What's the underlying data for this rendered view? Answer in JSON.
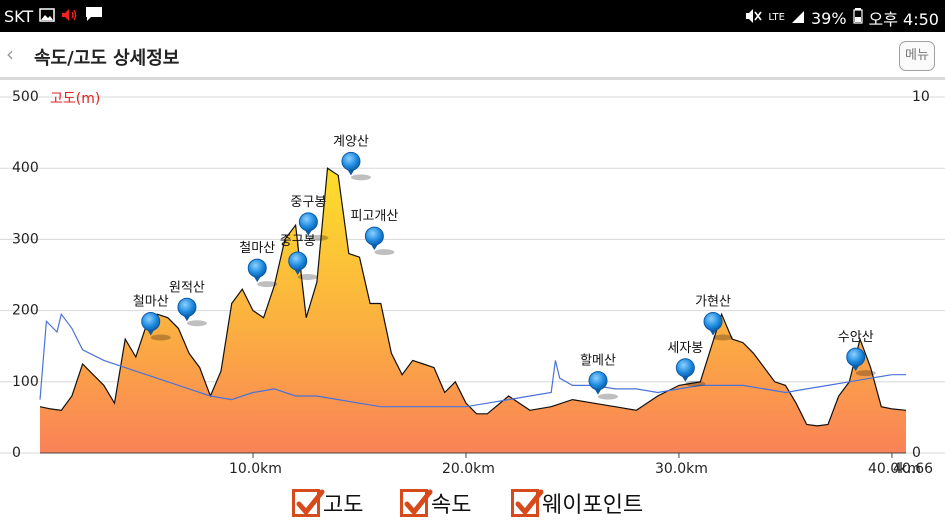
{
  "status_bar": {
    "carrier": "SKT",
    "network": "LTE",
    "battery": "39%",
    "time": "오후 4:50",
    "icons": [
      "image-icon",
      "speaker-icon",
      "message-icon",
      "mute-icon",
      "signal-icon",
      "battery-icon"
    ]
  },
  "header": {
    "back_icon": "‹",
    "title": "속도/고도 상세정보",
    "menu_label": "메뉴"
  },
  "colors": {
    "altitude_fill_top": "#fcd52a",
    "altitude_fill_bottom": "#fa8a5a",
    "speed_line": "#4a72d8",
    "marker": "#1e8be0",
    "checkbox": "#d64a1c",
    "axis_label_red": "#e02020"
  },
  "chart_data": {
    "type": "area",
    "left_axis_label": "고도(m)",
    "left_ylim": [
      0,
      500
    ],
    "left_ticks": [
      "0",
      "100",
      "200",
      "300",
      "400",
      "500"
    ],
    "right_ylim": [
      0,
      10
    ],
    "right_ticks": [
      "0",
      "10"
    ],
    "xlim": [
      0,
      40.66
    ],
    "x_ticks": [
      "10.0km",
      "20.0km",
      "30.0km",
      "40.0km"
    ],
    "x_tick_values": [
      10,
      20,
      30,
      40
    ],
    "x_end_label": "40.66",
    "grid": true,
    "series": [
      {
        "name": "고도",
        "x": [
          0,
          0.5,
          1.0,
          1.5,
          2.0,
          2.5,
          3.0,
          3.5,
          4.0,
          4.5,
          5.0,
          5.5,
          6.0,
          6.5,
          7.0,
          7.5,
          8.0,
          8.5,
          9.0,
          9.5,
          10.0,
          10.5,
          11.0,
          11.5,
          12.0,
          12.5,
          13.0,
          13.5,
          14.0,
          14.5,
          15.0,
          15.5,
          16.0,
          16.5,
          17.0,
          17.5,
          18.0,
          18.5,
          19.0,
          19.5,
          20.0,
          20.5,
          21.0,
          22.0,
          23.0,
          24.0,
          25.0,
          26.0,
          27.0,
          28.0,
          29.0,
          30.0,
          31.0,
          32.0,
          32.5,
          33.0,
          33.5,
          34.0,
          34.5,
          35.0,
          35.5,
          36.0,
          36.5,
          37.0,
          37.5,
          38.0,
          38.5,
          39.0,
          39.5,
          40.0,
          40.66
        ],
        "values": [
          65,
          62,
          60,
          80,
          125,
          110,
          95,
          70,
          160,
          135,
          180,
          195,
          190,
          175,
          140,
          120,
          80,
          115,
          210,
          230,
          200,
          190,
          235,
          300,
          320,
          190,
          240,
          400,
          390,
          280,
          275,
          210,
          210,
          140,
          110,
          130,
          125,
          120,
          85,
          100,
          70,
          55,
          55,
          80,
          60,
          65,
          75,
          70,
          65,
          60,
          80,
          95,
          100,
          195,
          160,
          155,
          140,
          120,
          100,
          95,
          70,
          40,
          38,
          40,
          80,
          100,
          160,
          120,
          65,
          62,
          60
        ]
      },
      {
        "name": "속도",
        "x": [
          0,
          0.3,
          0.8,
          1.0,
          1.5,
          2.0,
          3.0,
          4.0,
          5.0,
          6.0,
          7.0,
          8.0,
          9.0,
          10.0,
          11.0,
          12.0,
          13.0,
          14.0,
          15.0,
          16.0,
          17.0,
          18.0,
          19.0,
          20.0,
          21.0,
          22.0,
          23.0,
          24.0,
          24.2,
          24.4,
          25.0,
          26.0,
          27.0,
          28.0,
          29.0,
          30.0,
          31.0,
          32.0,
          33.0,
          34.0,
          35.0,
          36.0,
          37.0,
          38.0,
          39.0,
          40.0,
          40.66
        ],
        "values": [
          1.5,
          3.7,
          3.4,
          3.9,
          3.5,
          2.9,
          2.6,
          2.4,
          2.2,
          2.0,
          1.8,
          1.6,
          1.5,
          1.7,
          1.8,
          1.6,
          1.6,
          1.5,
          1.4,
          1.3,
          1.3,
          1.3,
          1.3,
          1.3,
          1.4,
          1.5,
          1.6,
          1.7,
          2.6,
          2.1,
          1.9,
          1.9,
          1.8,
          1.8,
          1.7,
          1.8,
          1.9,
          1.9,
          1.9,
          1.8,
          1.7,
          1.8,
          1.9,
          2.0,
          2.1,
          2.2,
          2.2
        ]
      }
    ],
    "waypoints": [
      {
        "name": "철마산",
        "x": 5.2,
        "y": 165
      },
      {
        "name": "원적산",
        "x": 6.9,
        "y": 185
      },
      {
        "name": "철마산",
        "x": 10.2,
        "y": 240
      },
      {
        "name": "중구봉",
        "x": 12.1,
        "y": 250
      },
      {
        "name": "중구봉",
        "x": 12.6,
        "y": 305
      },
      {
        "name": "계양산",
        "x": 14.6,
        "y": 390
      },
      {
        "name": "피고개산",
        "x": 15.7,
        "y": 285
      },
      {
        "name": "할메산",
        "x": 26.2,
        "y": 82
      },
      {
        "name": "세자봉",
        "x": 30.3,
        "y": 100
      },
      {
        "name": "가현산",
        "x": 31.6,
        "y": 165
      },
      {
        "name": "수안산",
        "x": 38.3,
        "y": 115
      }
    ]
  },
  "legend": [
    {
      "label": "고도",
      "checked": true
    },
    {
      "label": "속도",
      "checked": true
    },
    {
      "label": "웨이포인트",
      "checked": true
    }
  ]
}
